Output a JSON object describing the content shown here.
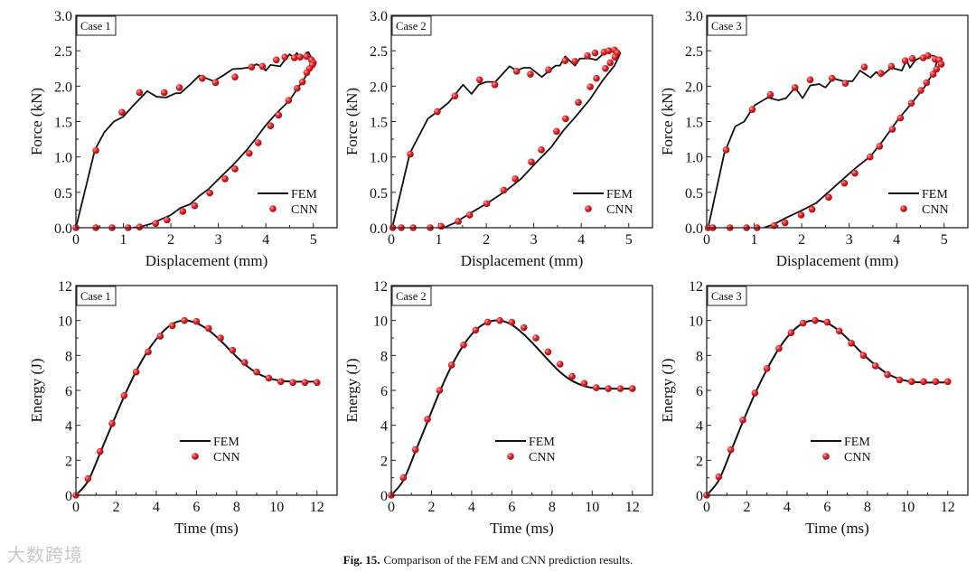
{
  "caption": {
    "label": "Fig. 15.",
    "text": "Comparison of the FEM and CNN prediction results."
  },
  "watermark": "大数跨境",
  "colors": {
    "fem": "#111111",
    "cnn": "#e8262a"
  },
  "chart_data": [
    {
      "type": "line",
      "case": "Case 1",
      "xlabel": "Displacement (mm)",
      "ylabel": "Force (kN)",
      "xlim": [
        0,
        5.5
      ],
      "ylim": [
        0,
        3
      ],
      "xticks": [
        "0",
        "1",
        "2",
        "3",
        "4",
        "5"
      ],
      "yticks": [
        "0.0",
        "0.5",
        "1.0",
        "1.5",
        "2.0",
        "2.5",
        "3.0"
      ],
      "legend": [
        "FEM",
        "CNN"
      ],
      "legend_position": "bottom-right",
      "fem": [
        [
          0,
          0
        ],
        [
          0.4,
          1.1
        ],
        [
          0.6,
          1.35
        ],
        [
          0.8,
          1.5
        ],
        [
          1.0,
          1.57
        ],
        [
          1.2,
          1.72
        ],
        [
          1.5,
          1.93
        ],
        [
          1.7,
          1.85
        ],
        [
          1.9,
          1.84
        ],
        [
          2.1,
          1.9
        ],
        [
          2.2,
          1.9
        ],
        [
          2.4,
          2.02
        ],
        [
          2.6,
          2.15
        ],
        [
          2.9,
          2.07
        ],
        [
          3.1,
          2.15
        ],
        [
          3.3,
          2.24
        ],
        [
          3.5,
          2.25
        ],
        [
          3.7,
          2.27
        ],
        [
          3.8,
          2.31
        ],
        [
          3.9,
          2.28
        ],
        [
          4.0,
          2.22
        ],
        [
          4.1,
          2.3
        ],
        [
          4.3,
          2.28
        ],
        [
          4.4,
          2.37
        ],
        [
          4.5,
          2.45
        ],
        [
          4.6,
          2.4
        ],
        [
          4.65,
          2.47
        ],
        [
          4.75,
          2.38
        ],
        [
          4.85,
          2.47
        ],
        [
          4.9,
          2.48
        ],
        [
          4.95,
          2.41
        ],
        [
          5.0,
          2.35
        ],
        [
          4.9,
          2.2
        ],
        [
          4.7,
          2.0
        ],
        [
          4.5,
          1.8
        ],
        [
          4.2,
          1.6
        ],
        [
          4.0,
          1.45
        ],
        [
          3.8,
          1.27
        ],
        [
          3.6,
          1.1
        ],
        [
          3.3,
          0.88
        ],
        [
          3.1,
          0.75
        ],
        [
          2.8,
          0.55
        ],
        [
          2.6,
          0.45
        ],
        [
          2.4,
          0.33
        ],
        [
          2.2,
          0.28
        ],
        [
          2.0,
          0.18
        ],
        [
          1.8,
          0.12
        ],
        [
          1.6,
          0.06
        ],
        [
          1.4,
          0.02
        ],
        [
          1.2,
          0
        ]
      ],
      "cnn": [
        [
          0,
          0
        ],
        [
          0.42,
          1.09
        ],
        [
          0.97,
          1.63
        ],
        [
          1.34,
          1.91
        ],
        [
          1.86,
          1.91
        ],
        [
          2.18,
          1.98
        ],
        [
          2.66,
          2.11
        ],
        [
          2.94,
          2.05
        ],
        [
          3.35,
          2.13
        ],
        [
          3.7,
          2.27
        ],
        [
          3.93,
          2.28
        ],
        [
          4.22,
          2.37
        ],
        [
          4.4,
          2.41
        ],
        [
          4.6,
          2.4
        ],
        [
          4.72,
          2.41
        ],
        [
          4.86,
          2.42
        ],
        [
          4.96,
          2.37
        ],
        [
          5.0,
          2.33
        ],
        [
          4.98,
          2.3
        ],
        [
          4.92,
          2.25
        ],
        [
          4.86,
          2.19
        ],
        [
          4.77,
          2.06
        ],
        [
          4.66,
          1.97
        ],
        [
          4.48,
          1.8
        ],
        [
          4.27,
          1.59
        ],
        [
          4.1,
          1.44
        ],
        [
          3.84,
          1.2
        ],
        [
          3.65,
          1.05
        ],
        [
          3.35,
          0.83
        ],
        [
          3.14,
          0.69
        ],
        [
          2.82,
          0.49
        ],
        [
          2.5,
          0.31
        ],
        [
          2.25,
          0.23
        ],
        [
          1.92,
          0.11
        ],
        [
          1.68,
          0.06
        ],
        [
          1.34,
          0.01
        ],
        [
          1.1,
          0
        ],
        [
          0.76,
          0
        ],
        [
          0.42,
          0
        ]
      ]
    },
    {
      "type": "line",
      "case": "Case 2",
      "xlabel": "Displacement (mm)",
      "ylabel": "Force (kN)",
      "xlim": [
        0,
        5.5
      ],
      "ylim": [
        0,
        3
      ],
      "xticks": [
        "0",
        "1",
        "2",
        "3",
        "4",
        "5"
      ],
      "yticks": [
        "0.0",
        "0.5",
        "1.0",
        "1.5",
        "2.0",
        "2.5",
        "3.0"
      ],
      "legend": [
        "FEM",
        "CNN"
      ],
      "legend_position": "bottom-right",
      "fem": [
        [
          0.02,
          0
        ],
        [
          0.39,
          1.05
        ],
        [
          0.77,
          1.54
        ],
        [
          0.99,
          1.65
        ],
        [
          1.21,
          1.77
        ],
        [
          1.51,
          2.02
        ],
        [
          1.69,
          1.89
        ],
        [
          1.84,
          2.02
        ],
        [
          2.0,
          2.06
        ],
        [
          2.19,
          2.06
        ],
        [
          2.49,
          2.28
        ],
        [
          2.64,
          2.22
        ],
        [
          2.79,
          2.26
        ],
        [
          2.92,
          2.26
        ],
        [
          3.17,
          2.13
        ],
        [
          3.33,
          2.22
        ],
        [
          3.46,
          2.29
        ],
        [
          3.55,
          2.29
        ],
        [
          3.66,
          2.42
        ],
        [
          3.87,
          2.29
        ],
        [
          3.97,
          2.39
        ],
        [
          4.19,
          2.39
        ],
        [
          4.32,
          2.37
        ],
        [
          4.47,
          2.46
        ],
        [
          4.63,
          2.5
        ],
        [
          4.76,
          2.5
        ],
        [
          4.82,
          2.46
        ],
        [
          4.7,
          2.29
        ],
        [
          4.44,
          2.07
        ],
        [
          4.19,
          1.82
        ],
        [
          3.87,
          1.56
        ],
        [
          3.62,
          1.37
        ],
        [
          3.37,
          1.14
        ],
        [
          3.05,
          0.92
        ],
        [
          2.73,
          0.69
        ],
        [
          2.41,
          0.52
        ],
        [
          2.03,
          0.35
        ],
        [
          1.65,
          0.2
        ],
        [
          1.34,
          0.07
        ],
        [
          1.11,
          0
        ]
      ],
      "cnn": [
        [
          0.03,
          0
        ],
        [
          0.4,
          1.04
        ],
        [
          0.97,
          1.64
        ],
        [
          1.34,
          1.86
        ],
        [
          1.86,
          2.09
        ],
        [
          2.18,
          2.02
        ],
        [
          2.64,
          2.21
        ],
        [
          2.93,
          2.17
        ],
        [
          3.31,
          2.23
        ],
        [
          3.66,
          2.36
        ],
        [
          3.87,
          2.35
        ],
        [
          4.13,
          2.43
        ],
        [
          4.29,
          2.47
        ],
        [
          4.48,
          2.48
        ],
        [
          4.58,
          2.5
        ],
        [
          4.7,
          2.51
        ],
        [
          4.76,
          2.47
        ],
        [
          4.71,
          2.41
        ],
        [
          4.61,
          2.33
        ],
        [
          4.51,
          2.25
        ],
        [
          4.32,
          2.11
        ],
        [
          4.19,
          1.99
        ],
        [
          3.94,
          1.77
        ],
        [
          3.67,
          1.54
        ],
        [
          3.48,
          1.36
        ],
        [
          3.16,
          1.1
        ],
        [
          2.95,
          0.93
        ],
        [
          2.61,
          0.69
        ],
        [
          2.37,
          0.53
        ],
        [
          2.01,
          0.34
        ],
        [
          1.65,
          0.18
        ],
        [
          1.41,
          0.09
        ],
        [
          1.05,
          0.02
        ],
        [
          0.82,
          0
        ],
        [
          0.46,
          0
        ],
        [
          0.21,
          0
        ]
      ]
    },
    {
      "type": "line",
      "case": "Case 3",
      "xlabel": "Displacement (mm)",
      "ylabel": "Force (kN)",
      "xlim": [
        0,
        5.5
      ],
      "ylim": [
        0,
        3
      ],
      "xticks": [
        "0",
        "1",
        "2",
        "3",
        "4",
        "5"
      ],
      "yticks": [
        "0.0",
        "0.5",
        "1.0",
        "1.5",
        "2.0",
        "2.5",
        "3.0"
      ],
      "legend": [
        "FEM",
        "CNN"
      ],
      "legend_position": "bottom-right",
      "fem": [
        [
          0.03,
          0
        ],
        [
          0.37,
          1.05
        ],
        [
          0.6,
          1.43
        ],
        [
          0.79,
          1.5
        ],
        [
          1.01,
          1.73
        ],
        [
          1.29,
          1.84
        ],
        [
          1.51,
          1.8
        ],
        [
          1.67,
          1.83
        ],
        [
          1.86,
          1.98
        ],
        [
          2.02,
          1.83
        ],
        [
          2.18,
          2.01
        ],
        [
          2.37,
          2.03
        ],
        [
          2.5,
          1.98
        ],
        [
          2.66,
          2.11
        ],
        [
          2.88,
          2.07
        ],
        [
          3.07,
          2.07
        ],
        [
          3.23,
          2.22
        ],
        [
          3.45,
          2.12
        ],
        [
          3.57,
          2.2
        ],
        [
          3.67,
          2.14
        ],
        [
          3.89,
          2.26
        ],
        [
          4.11,
          2.22
        ],
        [
          4.21,
          2.37
        ],
        [
          4.28,
          2.26
        ],
        [
          4.4,
          2.37
        ],
        [
          4.59,
          2.43
        ],
        [
          4.78,
          2.43
        ],
        [
          4.87,
          2.39
        ],
        [
          4.78,
          2.2
        ],
        [
          4.59,
          1.99
        ],
        [
          4.33,
          1.77
        ],
        [
          4.02,
          1.52
        ],
        [
          3.7,
          1.22
        ],
        [
          3.45,
          1.01
        ],
        [
          3.13,
          0.84
        ],
        [
          2.81,
          0.65
        ],
        [
          2.56,
          0.5
        ],
        [
          2.31,
          0.35
        ],
        [
          1.99,
          0.24
        ],
        [
          1.67,
          0.14
        ],
        [
          1.42,
          0.05
        ],
        [
          1.2,
          0
        ]
      ],
      "cnn": [
        [
          0.03,
          0
        ],
        [
          0.41,
          1.1
        ],
        [
          0.96,
          1.67
        ],
        [
          1.34,
          1.88
        ],
        [
          1.86,
          1.98
        ],
        [
          2.18,
          2.09
        ],
        [
          2.64,
          2.11
        ],
        [
          2.92,
          2.04
        ],
        [
          3.32,
          2.27
        ],
        [
          3.67,
          2.18
        ],
        [
          3.89,
          2.28
        ],
        [
          4.18,
          2.36
        ],
        [
          4.33,
          2.39
        ],
        [
          4.56,
          2.4
        ],
        [
          4.66,
          2.43
        ],
        [
          4.81,
          2.38
        ],
        [
          4.9,
          2.37
        ],
        [
          4.94,
          2.31
        ],
        [
          4.84,
          2.24
        ],
        [
          4.77,
          2.17
        ],
        [
          4.63,
          2.05
        ],
        [
          4.51,
          1.94
        ],
        [
          4.31,
          1.76
        ],
        [
          4.08,
          1.55
        ],
        [
          3.91,
          1.39
        ],
        [
          3.64,
          1.15
        ],
        [
          3.44,
          1.0
        ],
        [
          3.12,
          0.77
        ],
        [
          2.9,
          0.63
        ],
        [
          2.57,
          0.43
        ],
        [
          2.22,
          0.26
        ],
        [
          1.99,
          0.18
        ],
        [
          1.65,
          0.07
        ],
        [
          1.42,
          0.03
        ],
        [
          1.06,
          0
        ],
        [
          0.84,
          0
        ],
        [
          0.49,
          0
        ],
        [
          0.13,
          0
        ]
      ]
    },
    {
      "type": "line",
      "case": "Case 1",
      "xlabel": "Time (ms)",
      "ylabel": "Energy (J)",
      "xlim": [
        0,
        13
      ],
      "ylim": [
        0,
        12
      ],
      "xticks": [
        "0",
        "2",
        "4",
        "6",
        "8",
        "10",
        "12"
      ],
      "yticks": [
        "0",
        "2",
        "4",
        "6",
        "8",
        "10",
        "12"
      ],
      "legend": [
        "FEM",
        "CNN"
      ],
      "legend_position": "center",
      "t": [
        0,
        0.6,
        1.2,
        1.8,
        2.4,
        3.0,
        3.6,
        4.2,
        4.8,
        5.4,
        6.0,
        6.6,
        7.2,
        7.8,
        8.4,
        9.0,
        9.6,
        10.2,
        10.8,
        11.4,
        12.0
      ],
      "fem": [
        0,
        0.8,
        2.4,
        4.05,
        5.65,
        7.1,
        8.3,
        9.2,
        9.8,
        10.0,
        9.85,
        9.45,
        8.85,
        8.15,
        7.5,
        7.0,
        6.7,
        6.55,
        6.5,
        6.5,
        6.5
      ],
      "cnn": [
        0,
        0.95,
        2.5,
        4.1,
        5.7,
        7.05,
        8.2,
        9.1,
        9.7,
        10.0,
        9.95,
        9.55,
        9.0,
        8.3,
        7.6,
        7.05,
        6.7,
        6.5,
        6.45,
        6.45,
        6.45
      ]
    },
    {
      "type": "line",
      "case": "Case 2",
      "xlabel": "Time (ms)",
      "ylabel": "Energy (J)",
      "xlim": [
        0,
        13
      ],
      "ylim": [
        0,
        12
      ],
      "xticks": [
        "0",
        "2",
        "4",
        "6",
        "8",
        "10",
        "12"
      ],
      "yticks": [
        "0",
        "2",
        "4",
        "6",
        "8",
        "10",
        "12"
      ],
      "legend": [
        "FEM",
        "CNN"
      ],
      "legend_position": "center",
      "t": [
        0,
        0.6,
        1.2,
        1.8,
        2.4,
        3.0,
        3.6,
        4.2,
        4.8,
        5.4,
        6.0,
        6.6,
        7.2,
        7.8,
        8.4,
        9.0,
        9.6,
        10.2,
        10.8,
        11.4,
        12.0
      ],
      "fem": [
        0,
        0.85,
        2.5,
        4.2,
        5.9,
        7.4,
        8.6,
        9.45,
        9.9,
        10.0,
        9.75,
        9.2,
        8.5,
        7.75,
        7.05,
        6.55,
        6.25,
        6.12,
        6.1,
        6.1,
        6.1
      ],
      "cnn": [
        0,
        1.0,
        2.6,
        4.35,
        6.0,
        7.45,
        8.6,
        9.45,
        9.9,
        10.0,
        9.9,
        9.6,
        9.0,
        8.2,
        7.5,
        6.8,
        6.4,
        6.15,
        6.1,
        6.1,
        6.1
      ]
    },
    {
      "type": "line",
      "case": "Case 3",
      "xlabel": "Time (ms)",
      "ylabel": "Energy (J)",
      "xlim": [
        0,
        13
      ],
      "ylim": [
        0,
        12
      ],
      "xticks": [
        "0",
        "2",
        "4",
        "6",
        "8",
        "10",
        "12"
      ],
      "yticks": [
        "0",
        "2",
        "4",
        "6",
        "8",
        "10",
        "12"
      ],
      "legend": [
        "FEM",
        "CNN"
      ],
      "legend_position": "center",
      "t": [
        0,
        0.6,
        1.2,
        1.8,
        2.4,
        3.0,
        3.6,
        4.2,
        4.8,
        5.4,
        6.0,
        6.6,
        7.2,
        7.8,
        8.4,
        9.0,
        9.6,
        10.2,
        10.8,
        11.4,
        12.0
      ],
      "fem": [
        0,
        0.85,
        2.5,
        4.2,
        5.8,
        7.2,
        8.4,
        9.3,
        9.85,
        10.0,
        9.85,
        9.4,
        8.75,
        8.05,
        7.45,
        6.95,
        6.65,
        6.5,
        6.45,
        6.45,
        6.45
      ],
      "cnn": [
        0,
        1.05,
        2.6,
        4.3,
        5.85,
        7.25,
        8.4,
        9.3,
        9.85,
        10.0,
        9.9,
        9.4,
        8.7,
        8.0,
        7.4,
        6.9,
        6.6,
        6.5,
        6.5,
        6.5,
        6.5
      ]
    }
  ]
}
